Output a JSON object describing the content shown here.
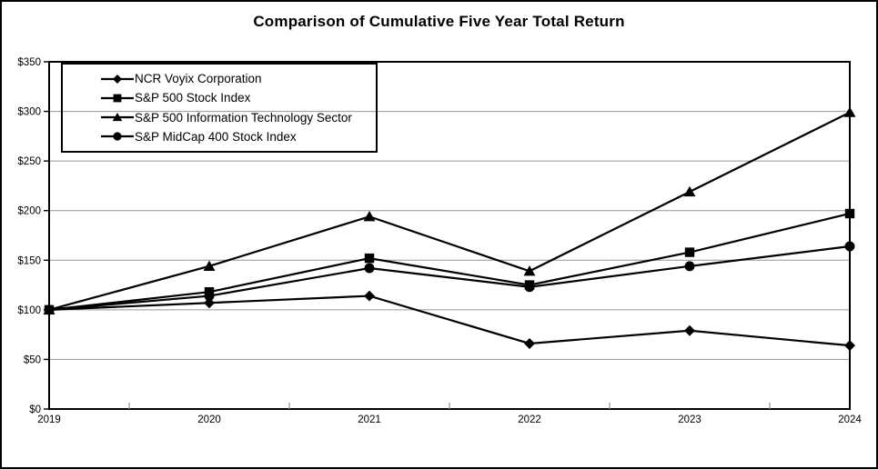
{
  "chart_data": {
    "type": "line",
    "title": "Comparison of Cumulative Five Year Total Return",
    "categories": [
      "2019",
      "2020",
      "2021",
      "2022",
      "2023",
      "2024"
    ],
    "series": [
      {
        "name": "NCR Voyix Corporation",
        "marker": "diamond",
        "values": [
          100,
          107,
          114,
          66,
          79,
          64
        ]
      },
      {
        "name": "S&P 500 Stock Index",
        "marker": "square",
        "values": [
          100,
          118,
          152,
          125,
          158,
          197
        ]
      },
      {
        "name": "S&P 500 Information Technology Sector",
        "marker": "triangle",
        "values": [
          100,
          144,
          194,
          139,
          219,
          299
        ]
      },
      {
        "name": "S&P MidCap 400 Stock Index",
        "marker": "circle",
        "values": [
          100,
          114,
          142,
          123,
          144,
          164
        ]
      }
    ],
    "xlabel": "",
    "ylabel": "",
    "ylim": [
      0,
      350
    ],
    "y_tick_step": 50,
    "y_tick_labels": [
      "$0",
      "$50",
      "$100",
      "$150",
      "$200",
      "$250",
      "$300",
      "$350"
    ],
    "grid": true,
    "legend_position": "top-left",
    "colors": {
      "series_line": "#000000",
      "marker_fill": "#000000",
      "gridline": "#969696",
      "axis": "#000000",
      "background": "#ffffff",
      "text": "#000000"
    }
  }
}
